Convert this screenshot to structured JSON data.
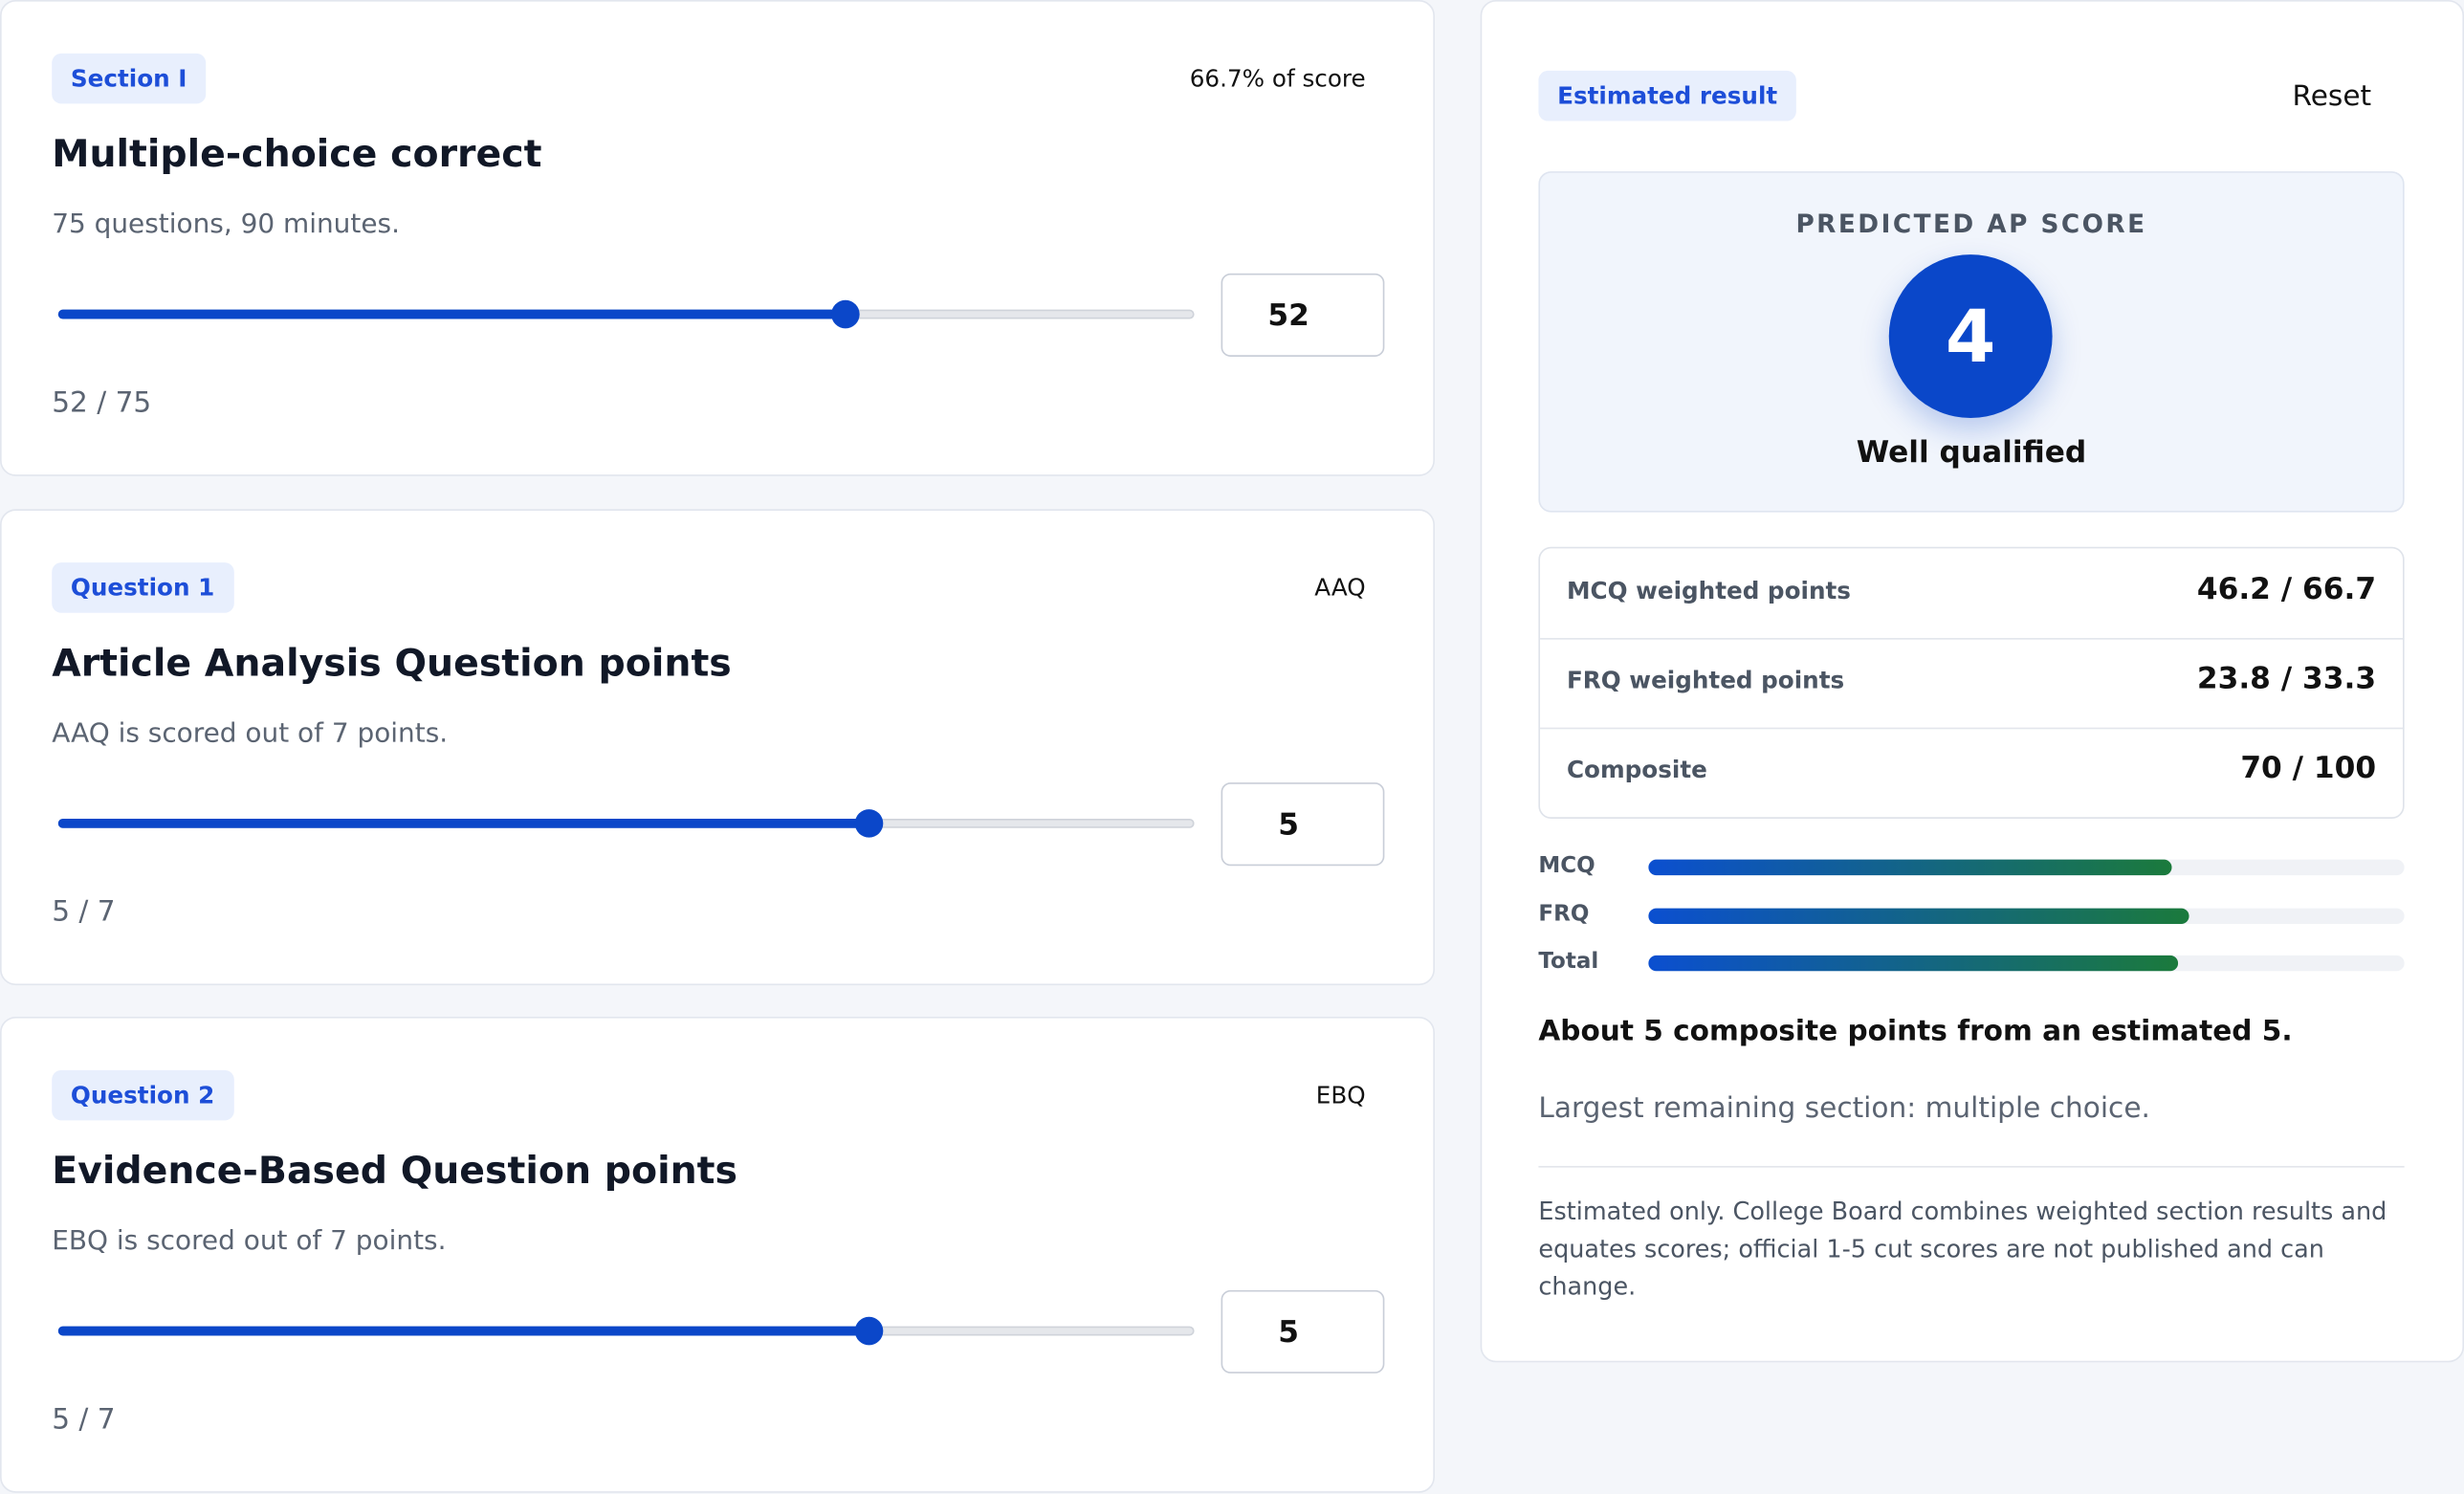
{
  "sections": [
    {
      "badge": "Section I",
      "meta": "66.7% of score",
      "title": "Multiple-choice correct",
      "description": "75 questions, 90 minutes.",
      "value": 52,
      "max": 75,
      "fraction": "52 / 75"
    },
    {
      "badge": "Question 1",
      "meta": "AAQ",
      "title": "Article Analysis Question points",
      "description": "AAQ is scored out of 7 points.",
      "value": 5,
      "max": 7,
      "fraction": "5 / 7"
    },
    {
      "badge": "Question 2",
      "meta": "EBQ",
      "title": "Evidence-Based Question points",
      "description": "EBQ is scored out of 7 points.",
      "value": 5,
      "max": 7,
      "fraction": "5 / 7"
    }
  ],
  "result": {
    "badge": "Estimated result",
    "reset": "Reset",
    "score_label": "PREDICTED AP SCORE",
    "score": 4,
    "verdict": "Well qualified",
    "rows": [
      {
        "label": "MCQ weighted points",
        "value": "46.2 / 66.7"
      },
      {
        "label": "FRQ weighted points",
        "value": "23.8 / 33.3"
      },
      {
        "label": "Composite",
        "value": "70 / 100"
      }
    ],
    "bars": {
      "xlim": [
        0,
        100
      ],
      "items": [
        {
          "label": "MCQ",
          "value": 69.3
        },
        {
          "label": "FRQ",
          "value": 71.5
        },
        {
          "label": "Total",
          "value": 70
        }
      ]
    },
    "summary": "About 5 composite points from an estimated 5.",
    "remaining": "Largest remaining section: multiple choice.",
    "disclaimer": "Estimated only. College Board combines weighted section results and equates scores; official 1-5 cut scores are not published and can change."
  }
}
